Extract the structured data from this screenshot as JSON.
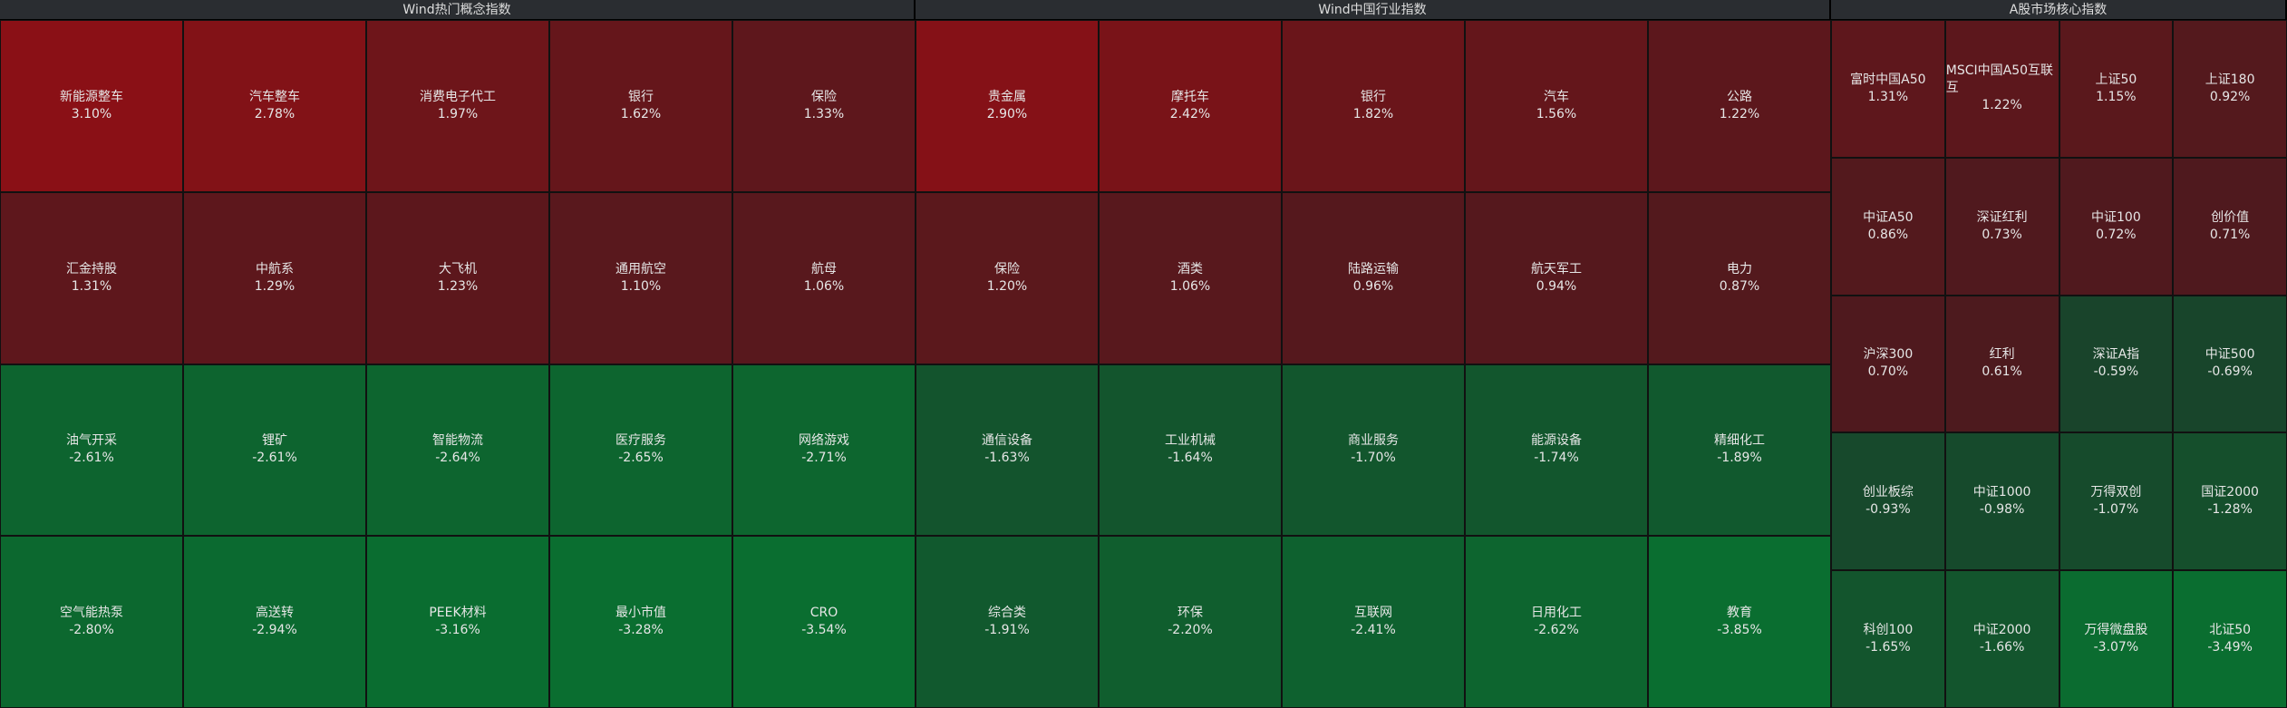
{
  "panels": [
    {
      "title": "Wind热门概念指数",
      "cells": [
        {
          "name": "新能源整车",
          "change": "3.10%"
        },
        {
          "name": "汽车整车",
          "change": "2.78%"
        },
        {
          "name": "消费电子代工",
          "change": "1.97%"
        },
        {
          "name": "银行",
          "change": "1.62%"
        },
        {
          "name": "保险",
          "change": "1.33%"
        },
        {
          "name": "汇金持股",
          "change": "1.31%"
        },
        {
          "name": "中航系",
          "change": "1.29%"
        },
        {
          "name": "大飞机",
          "change": "1.23%"
        },
        {
          "name": "通用航空",
          "change": "1.10%"
        },
        {
          "name": "航母",
          "change": "1.06%"
        },
        {
          "name": "油气开采",
          "change": "-2.61%"
        },
        {
          "name": "锂矿",
          "change": "-2.61%"
        },
        {
          "name": "智能物流",
          "change": "-2.64%"
        },
        {
          "name": "医疗服务",
          "change": "-2.65%"
        },
        {
          "name": "网络游戏",
          "change": "-2.71%"
        },
        {
          "name": "空气能热泵",
          "change": "-2.80%"
        },
        {
          "name": "高送转",
          "change": "-2.94%"
        },
        {
          "name": "PEEK材料",
          "change": "-3.16%"
        },
        {
          "name": "最小市值",
          "change": "-3.28%"
        },
        {
          "name": "CRO",
          "change": "-3.54%"
        }
      ]
    },
    {
      "title": "Wind中国行业指数",
      "cells": [
        {
          "name": "贵金属",
          "change": "2.90%"
        },
        {
          "name": "摩托车",
          "change": "2.42%"
        },
        {
          "name": "银行",
          "change": "1.82%"
        },
        {
          "name": "汽车",
          "change": "1.56%"
        },
        {
          "name": "公路",
          "change": "1.22%"
        },
        {
          "name": "保险",
          "change": "1.20%"
        },
        {
          "name": "酒类",
          "change": "1.06%"
        },
        {
          "name": "陆路运输",
          "change": "0.96%"
        },
        {
          "name": "航天军工",
          "change": "0.94%"
        },
        {
          "name": "电力",
          "change": "0.87%"
        },
        {
          "name": "通信设备",
          "change": "-1.63%"
        },
        {
          "name": "工业机械",
          "change": "-1.64%"
        },
        {
          "name": "商业服务",
          "change": "-1.70%"
        },
        {
          "name": "能源设备",
          "change": "-1.74%"
        },
        {
          "name": "精细化工",
          "change": "-1.89%"
        },
        {
          "name": "综合类",
          "change": "-1.91%"
        },
        {
          "name": "环保",
          "change": "-2.20%"
        },
        {
          "name": "互联网",
          "change": "-2.41%"
        },
        {
          "name": "日用化工",
          "change": "-2.62%"
        },
        {
          "name": "教育",
          "change": "-3.85%"
        }
      ]
    },
    {
      "title": "A股市场核心指数",
      "cells": [
        {
          "name": "富时中国A50",
          "change": "1.31%"
        },
        {
          "name": "MSCI中国A50互联互",
          "change": "1.22%"
        },
        {
          "name": "上证50",
          "change": "1.15%"
        },
        {
          "name": "上证180",
          "change": "0.92%"
        },
        {
          "name": "中证A50",
          "change": "0.86%"
        },
        {
          "name": "深证红利",
          "change": "0.73%"
        },
        {
          "name": "中证100",
          "change": "0.72%"
        },
        {
          "name": "创价值",
          "change": "0.71%"
        },
        {
          "name": "沪深300",
          "change": "0.70%"
        },
        {
          "name": "红利",
          "change": "0.61%"
        },
        {
          "name": "深证A指",
          "change": "-0.59%"
        },
        {
          "name": "中证500",
          "change": "-0.69%"
        },
        {
          "name": "创业板综",
          "change": "-0.93%"
        },
        {
          "name": "中证1000",
          "change": "-0.98%"
        },
        {
          "name": "万得双创",
          "change": "-1.07%"
        },
        {
          "name": "国证2000",
          "change": "-1.28%"
        },
        {
          "name": "科创100",
          "change": "-1.65%"
        },
        {
          "name": "中证2000",
          "change": "-1.66%"
        },
        {
          "name": "万得微盘股",
          "change": "-3.07%"
        },
        {
          "name": "北证50",
          "change": "-3.49%"
        }
      ]
    }
  ]
}
